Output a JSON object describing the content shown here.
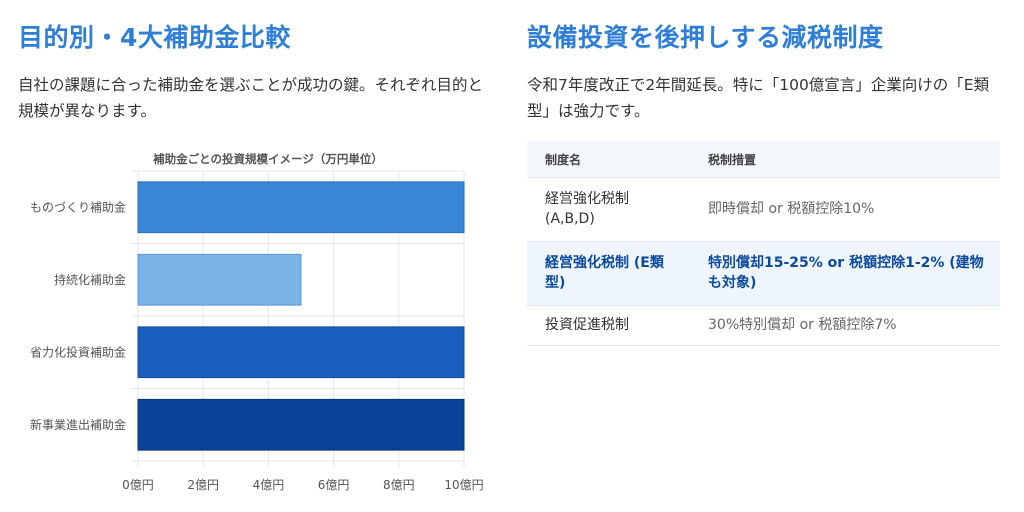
{
  "left": {
    "heading": "目的別・4大補助金比較",
    "lead": "自社の課題に合った補助金を選ぶことが成功の鍵。それぞれ目的と規模が異なります。"
  },
  "chart_data": {
    "type": "bar",
    "orientation": "horizontal",
    "title": "補助金ごとの投資規模イメージ（万円単位）",
    "categories": [
      "ものづくり補助金",
      "持続化補助金",
      "省力化投資補助金",
      "新事業進出補助金"
    ],
    "values": [
      10,
      5,
      10,
      10
    ],
    "bar_colors": [
      "#3a86d6",
      "#7ab4e8",
      "#1a5fbe",
      "#0a4499"
    ],
    "bar_edge_colors": [
      "#2b6db5",
      "#5a98d0",
      "#124e9e",
      "#06347a"
    ],
    "xlim": [
      0,
      10
    ],
    "xticks": [
      0,
      2,
      4,
      6,
      8,
      10
    ],
    "xtick_labels": [
      "0億円",
      "2億円",
      "4億円",
      "6億円",
      "8億円",
      "10億円"
    ],
    "grid": true
  },
  "right": {
    "heading": "設備投資を後押しする減税制度",
    "lead": "令和7年度改正で2年間延長。特に「100億宣言」企業向けの「E類型」は強力です。",
    "table": {
      "headers": [
        "制度名",
        "税制措置"
      ],
      "rows": [
        {
          "name": "経営強化税制 (A,B,D)",
          "measure": "即時償却 or 税額控除10%",
          "highlight": false
        },
        {
          "name": "経営強化税制 (E類型)",
          "measure": "特別償却15-25% or 税額控除1-2% (建物も対象)",
          "highlight": true
        },
        {
          "name": "投資促進税制",
          "measure": "30%特別償却 or 税額控除7%",
          "highlight": false
        }
      ]
    }
  }
}
